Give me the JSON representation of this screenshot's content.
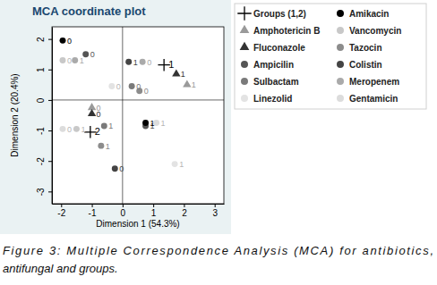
{
  "chart_data": {
    "type": "scatter",
    "title": "MCA coordinate plot",
    "x_label": "Dimension 1 (54.3%)",
    "y_label": "Dimension 2 (20.4%)",
    "xlim": [
      -2.3,
      3.3
    ],
    "ylim": [
      -3.4,
      2.4
    ],
    "xticks": [
      -2,
      -1,
      0,
      1,
      2,
      3
    ],
    "yticks": [
      -3,
      -2,
      -1,
      0,
      1,
      2
    ],
    "reference_lines": {
      "x": 0,
      "y": 0
    },
    "grid": false,
    "legend": "right",
    "series": [
      {
        "name": "Groups (1,2)",
        "color": "#000000",
        "marker": "plus",
        "x": [
          1.35,
          -1.05
        ],
        "values": [
          1.15,
          -1.05
        ],
        "labels": [
          "1",
          "2"
        ]
      },
      {
        "name": "Amphotericin B",
        "color": "#9a9a9a",
        "marker": "triangle",
        "x": [
          -1.0,
          2.1
        ],
        "values": [
          -0.25,
          0.5
        ],
        "labels": [
          "0",
          "1"
        ]
      },
      {
        "name": "Fluconazole",
        "color": "#333333",
        "marker": "triangle",
        "x": [
          -1.0,
          1.75
        ],
        "values": [
          -0.45,
          0.85
        ],
        "labels": [
          "0",
          "1"
        ]
      },
      {
        "name": "Ampicilin",
        "color": "#555555",
        "marker": "circle",
        "x": [
          -1.2,
          0.75
        ],
        "values": [
          1.5,
          -0.85
        ],
        "labels": [
          "0",
          "1"
        ]
      },
      {
        "name": "Sulbactam",
        "color": "#7a7a7a",
        "marker": "circle",
        "x": [
          0.3,
          -0.6
        ],
        "values": [
          0.45,
          -0.85
        ],
        "labels": [
          "0",
          "1"
        ]
      },
      {
        "name": "Linezolid",
        "color": "#e3e3e3",
        "marker": "circle",
        "x": [
          -0.35,
          1.7
        ],
        "values": [
          0.45,
          -2.1
        ],
        "labels": [
          "0",
          "1"
        ]
      },
      {
        "name": "Amikacin",
        "color": "#000000",
        "marker": "circle",
        "x": [
          -1.95,
          0.75
        ],
        "values": [
          1.95,
          -0.75
        ],
        "labels": [
          "0",
          "1"
        ]
      },
      {
        "name": "Vancomycin",
        "color": "#c8c8c8",
        "marker": "circle",
        "x": [
          -1.95,
          -1.5
        ],
        "values": [
          1.3,
          -0.95
        ],
        "labels": [
          "0",
          "1"
        ]
      },
      {
        "name": "Tazocin",
        "color": "#8c8c8c",
        "marker": "circle",
        "x": [
          0.55,
          -0.7
        ],
        "values": [
          0.3,
          -1.5
        ],
        "labels": [
          "0",
          "1"
        ]
      },
      {
        "name": "Colistin",
        "color": "#444444",
        "marker": "circle",
        "x": [
          -0.25,
          0.2
        ],
        "values": [
          -2.25,
          1.25
        ],
        "labels": [
          "0",
          "1"
        ]
      },
      {
        "name": "Meropenem",
        "color": "#aaaaaa",
        "marker": "circle",
        "x": [
          0.65,
          -1.55
        ],
        "values": [
          1.25,
          1.3
        ],
        "labels": [
          "0",
          "1"
        ]
      },
      {
        "name": "Gentamicin",
        "color": "#dcdcdc",
        "marker": "circle",
        "x": [
          -1.95,
          1.1
        ],
        "values": [
          -0.95,
          -0.75
        ],
        "labels": [
          "0",
          "1"
        ]
      }
    ],
    "caption": [
      "Figure 3: Multiple Correspondence Analysis (MCA) for antibiotics,",
      "antifungal and groups."
    ]
  }
}
